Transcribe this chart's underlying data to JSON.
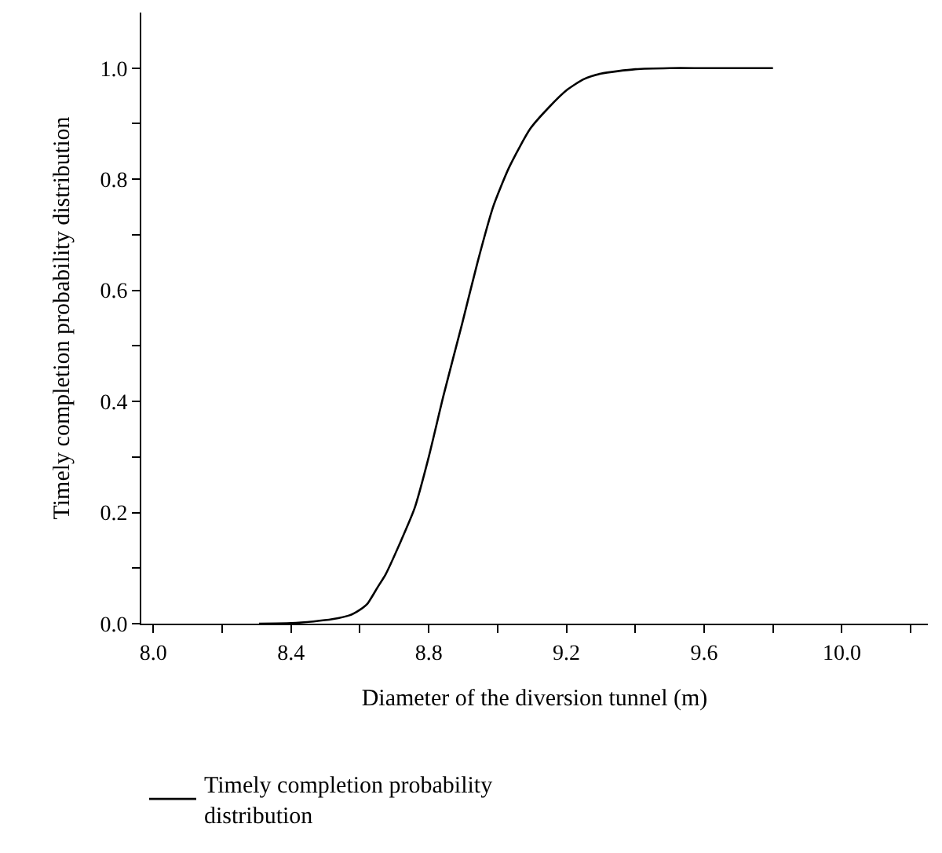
{
  "chart_data": {
    "type": "line",
    "xlabel": "Diameter of the diversion tunnel (m)",
    "ylabel": "Timely completion probability distribution",
    "x": [
      8.307,
      8.4,
      8.465,
      8.52,
      8.57,
      8.6,
      8.622,
      8.652,
      8.675,
      8.72,
      8.759,
      8.8,
      8.843,
      8.897,
      8.942,
      8.988,
      9.034,
      9.095,
      9.15,
      9.2,
      9.25,
      9.3,
      9.4,
      9.5,
      9.6,
      9.8
    ],
    "series": [
      {
        "name": "Timely completion probability distribution",
        "color": "#000000",
        "values": [
          0,
          0.001,
          0.004,
          0.008,
          0.015,
          0.025,
          0.036,
          0.066,
          0.089,
          0.15,
          0.208,
          0.3,
          0.411,
          0.54,
          0.651,
          0.752,
          0.822,
          0.891,
          0.93,
          0.96,
          0.98,
          0.99,
          0.998,
          1.0,
          1.0,
          1.0
        ]
      }
    ],
    "xlim": [
      7.965,
      10.25
    ],
    "ylim": [
      0,
      1.1
    ],
    "xticks": [
      {
        "value": 8.0,
        "label": "8.0"
      },
      {
        "value": 8.2,
        "label": null
      },
      {
        "value": 8.4,
        "label": "8.4"
      },
      {
        "value": 8.6,
        "label": null
      },
      {
        "value": 8.8,
        "label": "8.8"
      },
      {
        "value": 9.0,
        "label": null
      },
      {
        "value": 9.2,
        "label": "9.2"
      },
      {
        "value": 9.4,
        "label": null
      },
      {
        "value": 9.6,
        "label": "9.6"
      },
      {
        "value": 9.8,
        "label": null
      },
      {
        "value": 10.0,
        "label": "10.0"
      },
      {
        "value": 10.2,
        "label": null
      }
    ],
    "yticks": [
      {
        "value": 0,
        "label": "0.0"
      },
      {
        "value": 0.1,
        "label": null
      },
      {
        "value": 0.2,
        "label": "0.2"
      },
      {
        "value": 0.3,
        "label": null
      },
      {
        "value": 0.4,
        "label": "0.4"
      },
      {
        "value": 0.5,
        "label": null
      },
      {
        "value": 0.6,
        "label": "0.6"
      },
      {
        "value": 0.7,
        "label": null
      },
      {
        "value": 0.8,
        "label": "0.8"
      },
      {
        "value": 0.9,
        "label": null
      },
      {
        "value": 1.0,
        "label": "1.0"
      }
    ],
    "legend": "bottom",
    "marker": "none",
    "line_style": "solid"
  }
}
